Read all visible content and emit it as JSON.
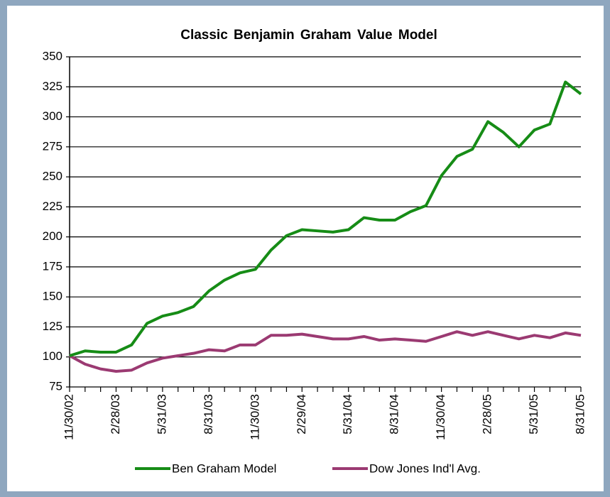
{
  "chart_data": {
    "type": "line",
    "title": "Classic Benjamin Graham Value Model",
    "categories": [
      "11/30/02",
      null,
      null,
      "2/28/03",
      null,
      null,
      "5/31/03",
      null,
      null,
      "8/31/03",
      null,
      null,
      "11/30/03",
      null,
      null,
      "2/29/04",
      null,
      null,
      "5/31/04",
      null,
      null,
      "8/31/04",
      null,
      null,
      "11/30/04",
      null,
      null,
      "2/28/05",
      null,
      null,
      "5/31/05",
      null,
      null,
      "8/31/05"
    ],
    "series": [
      {
        "name": "Ben Graham Model",
        "color": "#168c16",
        "values": [
          101,
          105,
          104,
          104,
          110,
          128,
          134,
          137,
          142,
          155,
          164,
          170,
          173,
          189,
          201,
          206,
          205,
          204,
          206,
          216,
          214,
          214,
          221,
          226,
          251,
          267,
          273,
          296,
          287,
          275,
          289,
          294,
          329,
          319
        ]
      },
      {
        "name": "Dow Jones Ind'l Avg.",
        "color": "#9b3a72",
        "values": [
          101,
          94,
          90,
          88,
          89,
          95,
          99,
          101,
          103,
          106,
          105,
          110,
          110,
          118,
          118,
          119,
          117,
          115,
          115,
          117,
          114,
          115,
          114,
          113,
          117,
          121,
          118,
          121,
          118,
          115,
          118,
          116,
          120,
          118
        ]
      }
    ],
    "ylim": [
      75,
      350
    ],
    "yticks": [
      75,
      100,
      125,
      150,
      175,
      200,
      225,
      250,
      275,
      300,
      325,
      350
    ],
    "grid": true,
    "legend": "bottom"
  }
}
